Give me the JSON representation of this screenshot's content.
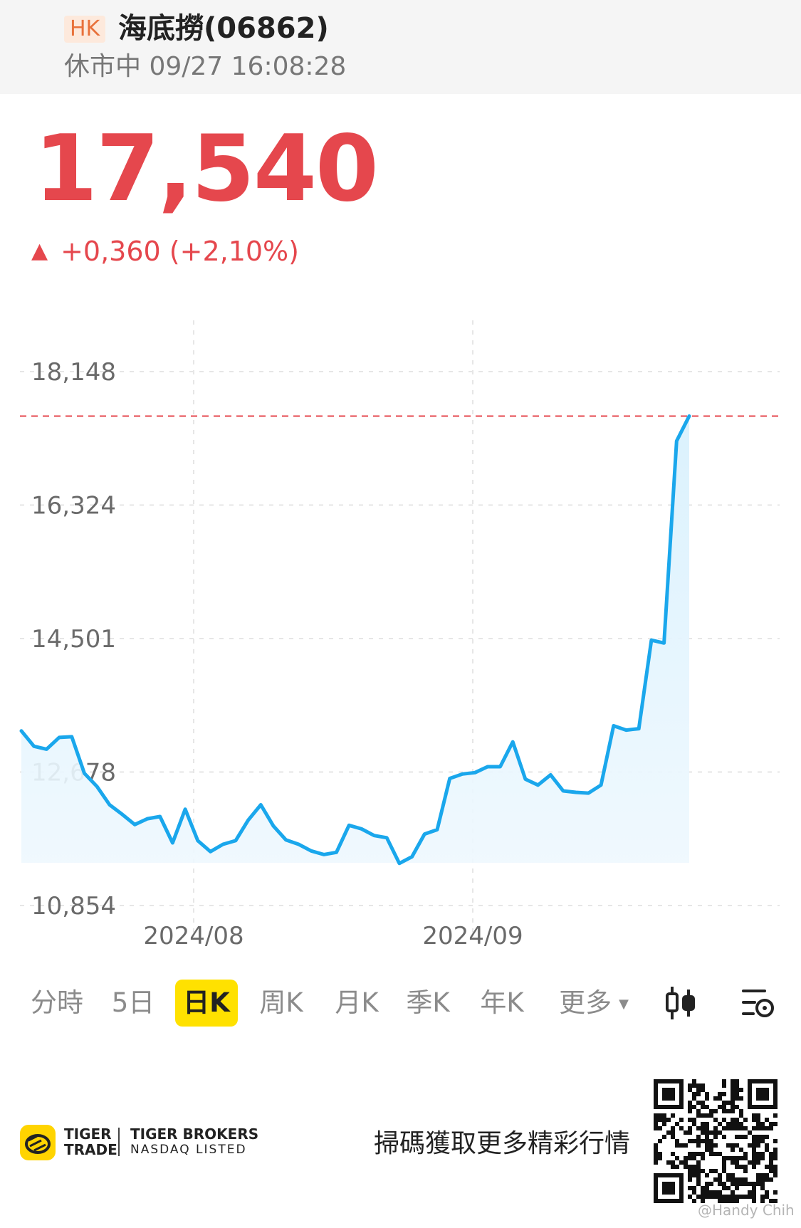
{
  "header": {
    "market_badge": "HK",
    "stock_name": "海底撈(06862)",
    "status": "休市中 09/27 16:08:28"
  },
  "quote": {
    "price": "17,540",
    "change": "+0,360 (+2,10%)",
    "direction_icon": "triangle-up-icon",
    "up_color": "#e5474d"
  },
  "chart_data": {
    "type": "area",
    "title": "",
    "xlabel": "",
    "ylabel": "",
    "ylim": [
      10854,
      18148
    ],
    "y_ticks": [
      "18,148",
      "16,324",
      "14,501",
      "12,678",
      "10,854"
    ],
    "x_ticks": [
      "2024/08",
      "2024/09"
    ],
    "reference_line": 17540,
    "grid": true,
    "line_color": "#1aa7ec",
    "series": [
      {
        "values": [
          13240,
          13030,
          12990,
          13150,
          13160,
          12660,
          12480,
          12230,
          12100,
          11960,
          12040,
          12070,
          11710,
          12170,
          11740,
          11590,
          11690,
          11740,
          12020,
          12230,
          11940,
          11750,
          11690,
          11600,
          11550,
          11580,
          11950,
          11900,
          11810,
          11780,
          11430,
          11520,
          11830,
          11890,
          12590,
          12650,
          12670,
          12750,
          12750,
          13090,
          12580,
          12500,
          12640,
          12420,
          12400,
          12390,
          12500,
          13310,
          13250,
          13270,
          14480,
          14440,
          17200,
          17540
        ]
      }
    ]
  },
  "tabs": {
    "items": [
      "分時",
      "5日",
      "日K",
      "周K",
      "月K",
      "季K",
      "年K",
      "更多"
    ],
    "active": "日K"
  },
  "footer": {
    "brand_line1": "TIGER",
    "brand_line2": "TRADE",
    "brand2_line1": "TIGER BROKERS",
    "brand2_line2": "NASDAQ LISTED",
    "promo": "掃碼獲取更多精彩行情",
    "watermark": "@Handy Chih"
  }
}
